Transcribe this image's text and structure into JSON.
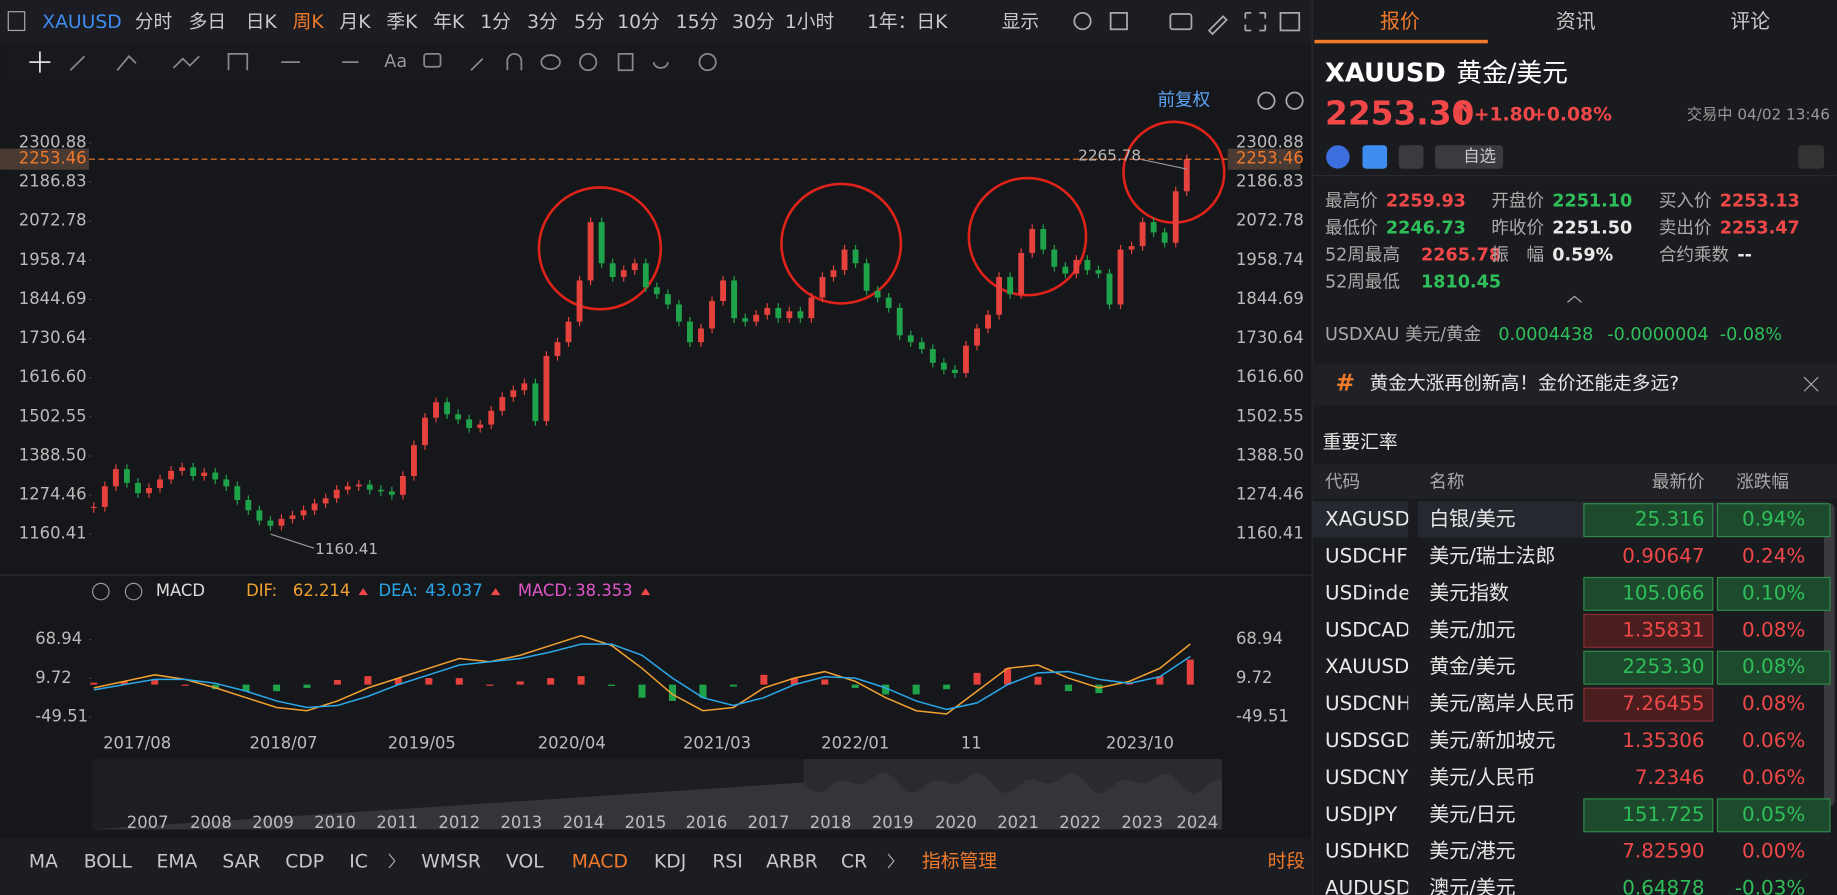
{
  "toolbar": {
    "symbol": "XAUUSD",
    "periods": [
      "分时",
      "多日",
      "日K",
      "周K",
      "月K",
      "季K",
      "年K",
      "1分",
      "3分",
      "5分",
      "10分",
      "15分",
      "30分",
      "1小时"
    ],
    "range": "1年：日K",
    "display": "显示",
    "text_tool": "Aa",
    "adjust": "前复权"
  },
  "tabs": [
    "报价",
    "资讯",
    "评论"
  ],
  "quote": {
    "symbol": "XAUUSD",
    "name": "黄金/美元",
    "price": "2253.30",
    "change": "+1.80",
    "change_pct": "+0.08%",
    "status": "交易中 04/02 13:46",
    "watch": "自选",
    "stats": [
      {
        "label": "最高价",
        "value": "2259.93",
        "color": "#f04848"
      },
      {
        "label": "开盘价",
        "value": "2251.10",
        "color": "#2fbf5a"
      },
      {
        "label": "买入价",
        "value": "2253.13",
        "color": "#f04848"
      },
      {
        "label": "最低价",
        "value": "2246.73",
        "color": "#2fbf5a"
      },
      {
        "label": "昨收价",
        "value": "2251.50",
        "color": "#e8e8e8"
      },
      {
        "label": "卖出价",
        "value": "2253.47",
        "color": "#f04848"
      },
      {
        "label": "52周最高",
        "value": "2265.78",
        "color": "#f04848"
      },
      {
        "label": "振　幅",
        "value": "0.59%",
        "color": "#e8e8e8"
      },
      {
        "label": "合约乘数",
        "value": "--",
        "color": "#e8e8e8"
      },
      {
        "label": "52周最低",
        "value": "1810.45",
        "color": "#2fbf5a"
      }
    ],
    "inverse": {
      "label": "USDXAU 美元/黄金",
      "price": "0.0004438",
      "change": "-0.0000004",
      "change_pct": "-0.08%"
    },
    "news": "黄金大涨再创新高！金价还能走多远?"
  },
  "rates": {
    "title": "重要汇率",
    "headers": [
      "代码",
      "名称",
      "最新价",
      "涨跌幅"
    ],
    "rows": [
      [
        "XAGUSD",
        "白银/美元",
        "25.316",
        "0.94%"
      ],
      [
        "USDCHF",
        "美元/瑞士法郎",
        "0.90647",
        "0.24%"
      ],
      [
        "USDinde",
        "美元指数",
        "105.066",
        "0.10%"
      ],
      [
        "USDCAD",
        "美元/加元",
        "1.35831",
        "0.08%"
      ],
      [
        "XAUUSD",
        "黄金/美元",
        "2253.30",
        "0.08%"
      ],
      [
        "USDCNH",
        "美元/离岸人民币",
        "7.26455",
        "0.08%"
      ],
      [
        "USDSGD",
        "美元/新加坡元",
        "1.35306",
        "0.06%"
      ],
      [
        "USDCNY",
        "美元/人民币",
        "7.2346",
        "0.06%"
      ],
      [
        "USDJPY",
        "美元/日元",
        "151.725",
        "0.05%"
      ],
      [
        "USDHKD",
        "美元/港元",
        "7.82590",
        "0.00%"
      ],
      [
        "AUDUSD",
        "澳元/美元",
        "0.64878",
        "-0.03%"
      ]
    ]
  },
  "chart_data": [
    {
      "type": "candlestick",
      "up_color": "#e5413d",
      "down_color": "#1fa34a",
      "ylim": [
        1044.3,
        2376.0
      ],
      "yticks": [
        {
          "value": 2300.88,
          "label": "2300.88"
        },
        2186.83,
        2072.78,
        1958.74,
        1844.69,
        1730.64,
        {
          "value": 1616.6,
          "label": "1616.60"
        },
        1502.55,
        {
          "value": 1388.5,
          "label": "1388.50"
        },
        1274.46,
        1160.41
      ],
      "last_price": 2253.46,
      "high_label": 2265.78,
      "low_label": 1160.41,
      "x_labels": [
        "2017/08",
        "2018/07",
        "2019/05",
        "2020/04",
        "2021/03",
        "2022/01",
        "11",
        "2023/10"
      ],
      "navigator_labels": [
        "2007",
        "2008",
        "2009",
        "2010",
        "2011",
        "2012",
        "2013",
        "2014",
        "2015",
        "2016",
        "2017",
        "2018",
        "2019",
        "2020",
        "2021",
        "2022",
        "2023",
        "2024"
      ],
      "values": [
        1240,
        1300,
        1350,
        1310,
        1280,
        1295,
        1320,
        1345,
        1355,
        1330,
        1340,
        1320,
        1300,
        1260,
        1230,
        1200,
        1185,
        1205,
        1215,
        1230,
        1250,
        1265,
        1290,
        1300,
        1305,
        1290,
        1285,
        1275,
        1330,
        1420,
        1500,
        1545,
        1510,
        1495,
        1470,
        1480,
        1520,
        1560,
        1580,
        1600,
        1490,
        1680,
        1720,
        1780,
        1900,
        2070,
        1950,
        1910,
        1930,
        1950,
        1880,
        1860,
        1830,
        1780,
        1720,
        1760,
        1840,
        1900,
        1790,
        1780,
        1800,
        1820,
        1790,
        1810,
        1790,
        1850,
        1910,
        1930,
        1990,
        1950,
        1870,
        1850,
        1820,
        1740,
        1720,
        1700,
        1660,
        1640,
        1630,
        1710,
        1760,
        1800,
        1910,
        1860,
        1980,
        2050,
        1990,
        1940,
        1920,
        1960,
        1930,
        1920,
        1830,
        1990,
        2000,
        2070,
        2040,
        2010,
        2160,
        2253.3
      ]
    },
    {
      "type": "macd",
      "title": "MACD",
      "ylim": [
        -72.84,
        112.02
      ],
      "yticks": [
        68.94,
        9.72,
        -49.51
      ],
      "series": [
        {
          "name": "DIF:",
          "color": "#f0a030",
          "values": [
            -5,
            5,
            15,
            8,
            -5,
            -20,
            -35,
            -40,
            -25,
            -5,
            10,
            25,
            40,
            35,
            45,
            60,
            75,
            60,
            25,
            -15,
            -40,
            -35,
            -5,
            10,
            20,
            5,
            -20,
            -40,
            -45,
            -10,
            25,
            30,
            10,
            -5,
            5,
            25,
            62.214
          ]
        },
        {
          "name": "DEA:",
          "color": "#2aa7e8",
          "values": [
            -8,
            0,
            8,
            8,
            2,
            -10,
            -25,
            -35,
            -32,
            -18,
            0,
            15,
            30,
            35,
            40,
            50,
            62,
            62,
            45,
            10,
            -20,
            -32,
            -20,
            0,
            12,
            10,
            -5,
            -25,
            -38,
            -28,
            0,
            18,
            20,
            8,
            2,
            12,
            43.037
          ]
        },
        {
          "name": "MACD:",
          "color": "#e055c8",
          "values": [
            3,
            5,
            7,
            0,
            -7,
            -10,
            -10,
            -5,
            7,
            13,
            10,
            10,
            10,
            0,
            5,
            10,
            13,
            -2,
            -20,
            -25,
            -20,
            -3,
            15,
            10,
            8,
            -5,
            -15,
            -15,
            -7,
            18,
            25,
            12,
            -10,
            -13,
            3,
            13,
            38.353
          ]
        }
      ]
    }
  ],
  "indicators": [
    "MA",
    "BOLL",
    "EMA",
    "SAR",
    "CDP",
    "IC",
    "WMSR",
    "VOL",
    "MACD",
    "KDJ",
    "RSI",
    "ARBR",
    "CR"
  ],
  "indicator_manage": "指标管理",
  "session": "时段"
}
